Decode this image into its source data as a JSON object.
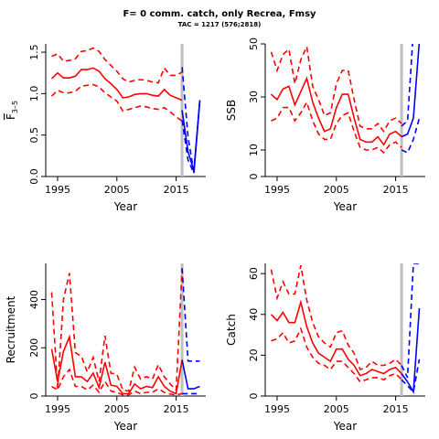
{
  "page": {
    "title": "F= 0 comm. catch, only Recrea, Fmsy",
    "subtitle": "TAC = 1217 (576;2818)"
  },
  "colors": {
    "historic": "#ff0000",
    "projection": "#0000ff",
    "marker": "#c0c0c0"
  },
  "chart_data": [
    {
      "id": "f35",
      "type": "line",
      "xlabel": "Year",
      "ylabel": "F3-5",
      "ylabel_main": "F",
      "ylabel_sub": "3–5",
      "xlim": [
        1993,
        2020
      ],
      "ylim": [
        0,
        1.6
      ],
      "xticks": [
        1995,
        2005,
        2015
      ],
      "xtick_labels": [
        "1995",
        "2005",
        "2015"
      ],
      "yticks": [
        0.0,
        0.5,
        1.0,
        1.5
      ],
      "ytick_labels": [
        "0.0",
        "0.5",
        "1.0",
        "1.5"
      ],
      "marker_year": 2016,
      "historic_x": [
        1994,
        1995,
        1996,
        1997,
        1998,
        1999,
        2000,
        2001,
        2002,
        2003,
        2004,
        2005,
        2006,
        2007,
        2008,
        2009,
        2010,
        2011,
        2012,
        2013,
        2014,
        2015,
        2016
      ],
      "historic": [
        1.18,
        1.25,
        1.19,
        1.19,
        1.21,
        1.29,
        1.29,
        1.31,
        1.27,
        1.18,
        1.12,
        1.05,
        0.95,
        0.96,
        0.99,
        1.0,
        1.0,
        0.98,
        0.97,
        1.05,
        0.98,
        0.95,
        0.92
      ],
      "historic_upper": [
        1.45,
        1.48,
        1.39,
        1.4,
        1.42,
        1.51,
        1.52,
        1.55,
        1.51,
        1.41,
        1.34,
        1.27,
        1.18,
        1.14,
        1.16,
        1.17,
        1.16,
        1.14,
        1.13,
        1.31,
        1.22,
        1.22,
        1.26
      ],
      "historic_lower": [
        0.97,
        1.04,
        1.01,
        1.01,
        1.03,
        1.09,
        1.1,
        1.11,
        1.08,
        1.01,
        0.96,
        0.91,
        0.79,
        0.81,
        0.83,
        0.85,
        0.84,
        0.82,
        0.81,
        0.83,
        0.78,
        0.72,
        0.67
      ],
      "proj_x": [
        2016,
        2017,
        2018,
        2019
      ],
      "projection": [
        0.8,
        0.3,
        0.07,
        0.92
      ],
      "projection_upper": [
        1.32,
        0.48,
        0.05,
        0.92
      ],
      "projection_lower": [
        0.68,
        0.2,
        0.04,
        0.92
      ]
    },
    {
      "id": "ssb",
      "type": "line",
      "xlabel": "Year",
      "ylabel": "SSB",
      "xlim": [
        1993,
        2020
      ],
      "ylim": [
        0,
        50
      ],
      "xticks": [
        1995,
        2005,
        2015
      ],
      "xtick_labels": [
        "1995",
        "2005",
        "2015"
      ],
      "yticks": [
        0,
        10,
        30,
        50
      ],
      "ytick_labels": [
        "0",
        "10",
        "30",
        "50"
      ],
      "marker_year": 2016,
      "historic_x": [
        1994,
        1995,
        1996,
        1997,
        1998,
        1999,
        2000,
        2001,
        2002,
        2003,
        2004,
        2005,
        2006,
        2007,
        2008,
        2009,
        2010,
        2011,
        2012,
        2013,
        2014,
        2015,
        2016
      ],
      "historic": [
        31,
        29,
        33,
        34,
        27,
        32,
        37,
        28,
        22,
        17,
        18,
        26,
        31,
        31,
        22,
        14,
        13,
        13,
        15,
        12,
        16,
        17,
        15
      ],
      "historic_upper": [
        47,
        40,
        46,
        48,
        35,
        44,
        49,
        34,
        29,
        23,
        24,
        35,
        40,
        40,
        29,
        19,
        18,
        18,
        20,
        17,
        21,
        22,
        20
      ],
      "historic_lower": [
        21,
        22,
        26,
        26,
        21,
        24,
        28,
        21,
        16,
        14,
        14,
        20,
        23,
        24,
        17,
        11,
        10,
        10,
        11,
        9,
        12,
        13,
        11
      ],
      "proj_x": [
        2016,
        2017,
        2018,
        2019
      ],
      "projection": [
        15,
        16,
        22,
        51
      ],
      "projection_upper": [
        19,
        21,
        55,
        62
      ],
      "projection_lower": [
        10,
        9,
        14,
        22
      ]
    },
    {
      "id": "recruitment",
      "type": "line",
      "xlabel": "Year",
      "ylabel": "Recruitment",
      "xlim": [
        1993,
        2020
      ],
      "ylim": [
        0,
        550
      ],
      "xticks": [
        1995,
        2005,
        2015
      ],
      "xtick_labels": [
        "1995",
        "2005",
        "2015"
      ],
      "yticks": [
        0,
        200,
        400
      ],
      "ytick_labels": [
        "0",
        "200",
        "400"
      ],
      "marker_year": 2016,
      "historic_x": [
        1994,
        1995,
        1996,
        1997,
        1998,
        1999,
        2000,
        2001,
        2002,
        2003,
        2004,
        2005,
        2006,
        2007,
        2008,
        2009,
        2010,
        2011,
        2012,
        2013,
        2014,
        2015,
        2016
      ],
      "historic": [
        195,
        60,
        185,
        245,
        80,
        80,
        60,
        95,
        35,
        140,
        45,
        40,
        10,
        10,
        50,
        30,
        40,
        35,
        80,
        40,
        20,
        10,
        150
      ],
      "historic_upper": [
        430,
        30,
        400,
        510,
        180,
        165,
        100,
        160,
        60,
        250,
        95,
        90,
        25,
        20,
        120,
        70,
        80,
        70,
        130,
        80,
        50,
        25,
        530
      ],
      "historic_lower": [
        40,
        25,
        80,
        110,
        40,
        40,
        25,
        45,
        15,
        60,
        20,
        15,
        5,
        5,
        20,
        10,
        15,
        15,
        30,
        15,
        8,
        4,
        10
      ],
      "proj_x": [
        2016,
        2017,
        2018,
        2019
      ],
      "projection": [
        150,
        30,
        30,
        40
      ],
      "projection_upper": [
        530,
        145,
        145,
        145
      ],
      "projection_lower": [
        10,
        10,
        10,
        10
      ]
    },
    {
      "id": "catch",
      "type": "line",
      "xlabel": "Year",
      "ylabel": "Catch",
      "xlim": [
        1993,
        2020
      ],
      "ylim": [
        0,
        65
      ],
      "xticks": [
        1995,
        2005,
        2015
      ],
      "xtick_labels": [
        "1995",
        "2005",
        "2015"
      ],
      "yticks": [
        0,
        20,
        40,
        60
      ],
      "ytick_labels": [
        "0",
        "20",
        "40",
        "60"
      ],
      "marker_year": 2016,
      "historic_x": [
        1994,
        1995,
        1996,
        1997,
        1998,
        1999,
        2000,
        2001,
        2002,
        2003,
        2004,
        2005,
        2006,
        2007,
        2008,
        2009,
        2010,
        2011,
        2012,
        2013,
        2014,
        2015,
        2016
      ],
      "historic": [
        40,
        37,
        41,
        36,
        36,
        46,
        34,
        26,
        21,
        19,
        17,
        23,
        23,
        18,
        15,
        10,
        11,
        13,
        12,
        11,
        13,
        14,
        11
      ],
      "historic_upper": [
        62,
        48,
        56,
        50,
        50,
        64,
        47,
        36,
        29,
        26,
        24,
        31,
        32,
        25,
        21,
        13,
        14,
        17,
        15,
        15,
        16,
        18,
        15
      ],
      "historic_lower": [
        27,
        28,
        31,
        26,
        27,
        33,
        24,
        19,
        16,
        15,
        13,
        17,
        17,
        14,
        11,
        7,
        8,
        9,
        9,
        8,
        10,
        11,
        8
      ],
      "proj_x": [
        2016,
        2017,
        2018,
        2019
      ],
      "projection": [
        11,
        7,
        2,
        43
      ],
      "projection_upper": [
        15,
        9,
        65,
        65
      ],
      "projection_lower": [
        8,
        5,
        2,
        18
      ]
    }
  ]
}
